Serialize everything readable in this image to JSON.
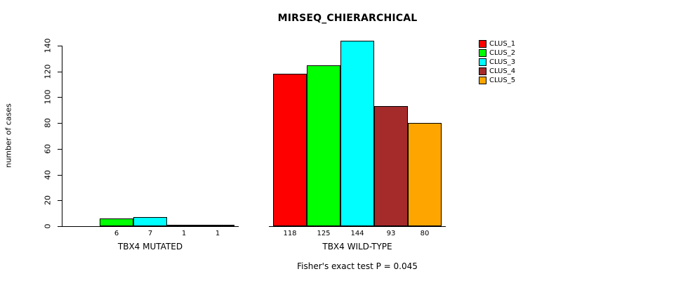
{
  "chart_data": {
    "type": "bar",
    "title": "MIRSEQ_CHIERARCHICAL",
    "ylabel": "number of cases",
    "xlabel": "",
    "ylim": [
      0,
      140
    ],
    "yticks": [
      0,
      20,
      40,
      60,
      80,
      100,
      120,
      140
    ],
    "grid": false,
    "series_labels": [
      "CLUS_1",
      "CLUS_2",
      "CLUS_3",
      "CLUS_4",
      "CLUS_5"
    ],
    "legend": {
      "position": "top-right",
      "entries": [
        {
          "label": "CLUS_1",
          "color": "#FF0000"
        },
        {
          "label": "CLUS_2",
          "color": "#00FF00"
        },
        {
          "label": "CLUS_3",
          "color": "#00FFFF"
        },
        {
          "label": "CLUS_4",
          "color": "#A52A2A"
        },
        {
          "label": "CLUS_5",
          "color": "#FFA500"
        }
      ]
    },
    "groups": [
      {
        "name": "TBX4 MUTATED",
        "values": [
          0,
          6,
          7,
          1,
          1
        ],
        "value_labels": [
          "",
          "6",
          "7",
          "1",
          "1"
        ]
      },
      {
        "name": "TBX4 WILD-TYPE",
        "values": [
          118,
          125,
          144,
          93,
          80
        ],
        "value_labels": [
          "118",
          "125",
          "144",
          "93",
          "80"
        ]
      }
    ],
    "annotation": "Fisher's exact test P = 0.045"
  }
}
